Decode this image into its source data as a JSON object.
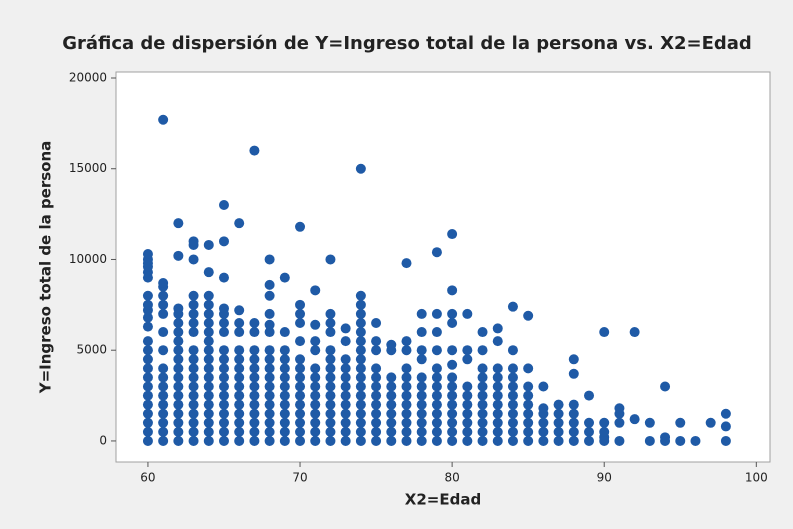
{
  "chart_data": {
    "type": "scatter",
    "title": "Gráfica de dispersión de Y=Ingreso total de la persona vs. X2=Edad",
    "x_label": "X2=Edad",
    "y_label": "Y=Ingreso total de la persona",
    "color": "#1f5aa6",
    "xlim": [
      57.9,
      100.9
    ],
    "xticks": [
      60,
      70,
      80,
      90,
      100
    ],
    "ylim": [
      -1160,
      20330
    ],
    "yticks": [
      0,
      5000,
      10000,
      15000,
      20000
    ],
    "x": [
      60,
      60,
      60,
      60,
      60,
      60,
      60,
      60,
      60,
      60,
      60,
      60,
      60,
      60,
      60,
      60,
      60,
      60,
      60,
      60,
      60,
      60,
      60,
      61,
      61,
      61,
      61,
      61,
      61,
      61,
      61,
      61,
      61,
      61,
      61,
      61,
      61,
      61,
      61,
      61,
      62,
      62,
      62,
      62,
      62,
      62,
      62,
      62,
      62,
      62,
      62,
      62,
      62,
      62,
      62,
      62,
      62,
      62,
      63,
      63,
      63,
      63,
      63,
      63,
      63,
      63,
      63,
      63,
      63,
      63,
      63,
      63,
      63,
      63,
      63,
      63,
      63,
      64,
      64,
      64,
      64,
      64,
      64,
      64,
      64,
      64,
      64,
      64,
      64,
      64,
      64,
      64,
      64,
      64,
      64,
      64,
      65,
      65,
      65,
      65,
      65,
      65,
      65,
      65,
      65,
      65,
      65,
      65,
      65,
      65,
      65,
      65,
      65,
      65,
      66,
      66,
      66,
      66,
      66,
      66,
      66,
      66,
      66,
      66,
      66,
      66,
      66,
      66,
      66,
      67,
      67,
      67,
      67,
      67,
      67,
      67,
      67,
      67,
      67,
      67,
      67,
      67,
      67,
      68,
      68,
      68,
      68,
      68,
      68,
      68,
      68,
      68,
      68,
      68,
      68,
      68,
      68,
      68,
      68,
      68,
      69,
      69,
      69,
      69,
      69,
      69,
      69,
      69,
      69,
      69,
      69,
      69,
      69,
      70,
      70,
      70,
      70,
      70,
      70,
      70,
      70,
      70,
      70,
      70,
      70,
      70,
      70,
      70,
      71,
      71,
      71,
      71,
      71,
      71,
      71,
      71,
      71,
      71,
      71,
      71,
      71,
      72,
      72,
      72,
      72,
      72,
      72,
      72,
      72,
      72,
      72,
      72,
      72,
      72,
      72,
      72,
      73,
      73,
      73,
      73,
      73,
      73,
      73,
      73,
      73,
      73,
      73,
      73,
      74,
      74,
      74,
      74,
      74,
      74,
      74,
      74,
      74,
      74,
      74,
      74,
      74,
      74,
      74,
      74,
      74,
      74,
      75,
      75,
      75,
      75,
      75,
      75,
      75,
      75,
      75,
      75,
      75,
      75,
      76,
      76,
      76,
      76,
      76,
      76,
      76,
      76,
      76,
      76,
      77,
      77,
      77,
      77,
      77,
      77,
      77,
      77,
      77,
      77,
      77,
      77,
      78,
      78,
      78,
      78,
      78,
      78,
      78,
      78,
      78,
      78,
      78,
      78,
      79,
      79,
      79,
      79,
      79,
      79,
      79,
      79,
      79,
      79,
      79,
      79,
      79,
      80,
      80,
      80,
      80,
      80,
      80,
      80,
      80,
      80,
      80,
      80,
      80,
      80,
      80,
      81,
      81,
      81,
      81,
      81,
      81,
      81,
      81,
      81,
      81,
      82,
      82,
      82,
      82,
      82,
      82,
      82,
      82,
      82,
      82,
      82,
      83,
      83,
      83,
      83,
      83,
      83,
      83,
      83,
      83,
      83,
      83,
      84,
      84,
      84,
      84,
      84,
      84,
      84,
      84,
      84,
      84,
      84,
      85,
      85,
      85,
      85,
      85,
      85,
      85,
      85,
      85,
      86,
      86,
      86,
      86,
      86,
      86,
      87,
      87,
      87,
      87,
      87,
      88,
      88,
      88,
      88,
      88,
      88,
      88,
      89,
      89,
      89,
      89,
      90,
      90,
      90,
      90,
      90,
      91,
      91,
      91,
      91,
      92,
      92,
      93,
      93,
      94,
      94,
      94,
      95,
      95,
      96,
      97,
      98,
      98,
      98
    ],
    "y": [
      0,
      500,
      1000,
      1500,
      2000,
      2500,
      3000,
      3500,
      4000,
      4500,
      5000,
      5500,
      6300,
      6800,
      7200,
      7500,
      8000,
      9000,
      9300,
      9600,
      9800,
      10000,
      10300,
      0,
      500,
      1000,
      1500,
      2000,
      2500,
      3000,
      3500,
      4000,
      5000,
      6000,
      7000,
      7500,
      8000,
      8500,
      8700,
      17700,
      0,
      500,
      1000,
      1500,
      2000,
      2500,
      3000,
      3500,
      4000,
      4500,
      5000,
      5500,
      6000,
      6500,
      7000,
      7300,
      10200,
      12000,
      0,
      500,
      1000,
      1500,
      2000,
      2500,
      3000,
      3500,
      4000,
      4500,
      5000,
      6000,
      6500,
      7000,
      7500,
      8000,
      10000,
      10800,
      11000,
      0,
      500,
      1000,
      1500,
      2000,
      2500,
      3000,
      3500,
      4000,
      4500,
      5000,
      5500,
      6000,
      6500,
      7000,
      7500,
      8000,
      9300,
      10800,
      0,
      500,
      1000,
      1500,
      2000,
      2500,
      3000,
      3500,
      4000,
      4500,
      5000,
      6000,
      6500,
      7000,
      7300,
      9000,
      11000,
      13000,
      0,
      500,
      1000,
      1500,
      2000,
      2500,
      3000,
      3500,
      4000,
      4500,
      5000,
      6000,
      6500,
      7200,
      12000,
      0,
      500,
      1000,
      1500,
      2000,
      2500,
      3000,
      3500,
      4000,
      4500,
      5000,
      6000,
      6500,
      16000,
      0,
      500,
      1000,
      1500,
      2000,
      2500,
      3000,
      3500,
      4000,
      4500,
      5000,
      6000,
      6400,
      7000,
      8000,
      8600,
      10000,
      0,
      500,
      1000,
      1500,
      2000,
      2500,
      3000,
      3500,
      4000,
      4500,
      5000,
      6000,
      9000,
      0,
      500,
      1000,
      1500,
      2000,
      2500,
      3000,
      3500,
      4000,
      4500,
      5500,
      6500,
      7000,
      7500,
      11800,
      0,
      500,
      1000,
      1500,
      2000,
      2500,
      3000,
      3500,
      4000,
      5000,
      5500,
      6400,
      8300,
      0,
      500,
      1000,
      1500,
      2000,
      2500,
      3000,
      3500,
      4000,
      4500,
      5000,
      6000,
      6500,
      7000,
      10000,
      0,
      500,
      1000,
      1500,
      2000,
      2500,
      3000,
      3500,
      4000,
      4500,
      5500,
      6200,
      0,
      500,
      1000,
      1500,
      2000,
      2500,
      3000,
      3500,
      4000,
      4500,
      5000,
      5500,
      6000,
      6500,
      7000,
      7500,
      8000,
      15000,
      0,
      500,
      1000,
      1500,
      2000,
      2500,
      3000,
      3500,
      4000,
      5000,
      5500,
      6500,
      0,
      500,
      1000,
      1500,
      2000,
      2500,
      3000,
      3500,
      5000,
      5300,
      0,
      500,
      1000,
      1500,
      2000,
      2500,
      3000,
      3500,
      4000,
      5000,
      5500,
      9800,
      0,
      500,
      1000,
      1500,
      2000,
      2500,
      3000,
      3500,
      4500,
      5000,
      6000,
      7000,
      0,
      500,
      1000,
      1500,
      2000,
      2500,
      3000,
      3500,
      4000,
      5000,
      6000,
      7000,
      10400,
      0,
      500,
      1000,
      1500,
      2000,
      2500,
      3000,
      3500,
      4200,
      5000,
      6500,
      7000,
      8300,
      11400,
      0,
      500,
      1000,
      1500,
      2000,
      2500,
      3000,
      4500,
      5000,
      7000,
      0,
      500,
      1000,
      1500,
      2000,
      2500,
      3000,
      3500,
      4000,
      5000,
      6000,
      0,
      500,
      1000,
      1500,
      2000,
      2500,
      3000,
      3500,
      4000,
      5500,
      6200,
      0,
      500,
      1000,
      1500,
      2000,
      2500,
      3000,
      3500,
      4000,
      5000,
      7400,
      0,
      500,
      1000,
      1500,
      2000,
      2500,
      3000,
      4000,
      6900,
      0,
      500,
      1000,
      1500,
      1800,
      3000,
      0,
      500,
      1000,
      1500,
      2000,
      0,
      500,
      1000,
      1500,
      2000,
      3700,
      4500,
      0,
      500,
      1000,
      2500,
      0,
      200,
      500,
      1000,
      6000,
      0,
      1000,
      1500,
      1800,
      1200,
      6000,
      0,
      1000,
      0,
      200,
      3000,
      0,
      1000,
      0,
      1000,
      0,
      800,
      1500
    ]
  }
}
